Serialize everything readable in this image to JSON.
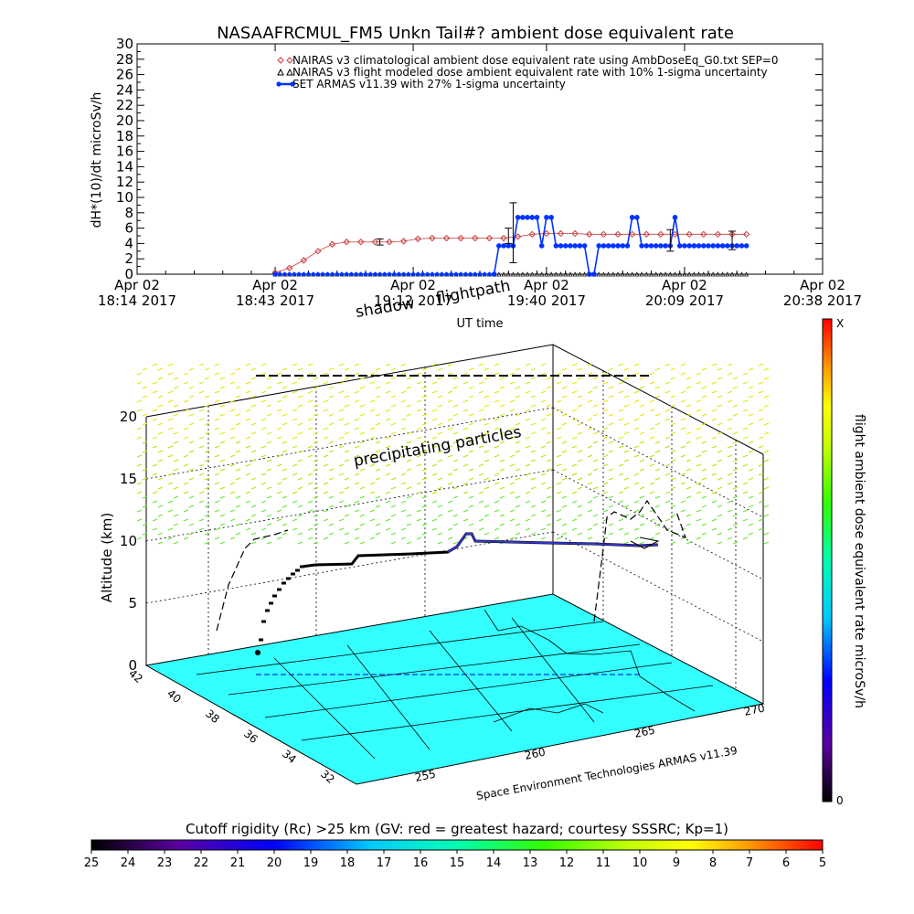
{
  "top_chart": {
    "title": "NASAAFRCMUL_FM5 Unkn Tail#? ambient dose equivalent rate",
    "ylabel": "dH*(10)/dt microSv/h",
    "xlabel": "UT time",
    "legend": [
      "NAIRAS v3 climatological ambient dose equivalent rate using AmbDoseEq_G0.txt SEP=0",
      "NAIRAS v3 flight modeled dose ambient equivalent rate with 10% 1-sigma uncertainty",
      "SET ARMAS v11.39 with 27% 1-sigma uncertainty"
    ],
    "xticks": [
      {
        "date": "Apr 02",
        "time": "18:14 2017"
      },
      {
        "date": "Apr 02",
        "time": "18:43 2017"
      },
      {
        "date": "Apr 02",
        "time": "19:12 2017"
      },
      {
        "date": "Apr 02",
        "time": "19:40 2017"
      },
      {
        "date": "Apr 02",
        "time": "20:09 2017"
      },
      {
        "date": "Apr 02",
        "time": "20:38 2017"
      }
    ]
  },
  "scene": {
    "shadow_label": "shadow",
    "flightpath_label": "flightpath",
    "precip_label": "precipitating particles",
    "alt_label": "Altitude (km)",
    "alt_ticks": [
      "0",
      "5",
      "10",
      "15",
      "20"
    ],
    "lat_ticks": [
      "42",
      "40",
      "38",
      "36",
      "34",
      "32"
    ],
    "lon_ticks": [
      "255",
      "260",
      "265",
      "270"
    ],
    "credit": "Space Environment Technologies ARMAS v11.39"
  },
  "colorbar_right": {
    "label": "flight ambient dose equivalent rate microSv/h",
    "top": "X",
    "bottom": "0"
  },
  "colorbar_bottom": {
    "title": "Cutoff rigidity (Rc) >25 km (GV: red = greatest hazard; courtesy SSSRC; Kp=1)",
    "ticks": [
      "25",
      "24",
      "23",
      "22",
      "21",
      "20",
      "19",
      "18",
      "17",
      "16",
      "15",
      "14",
      "13",
      "12",
      "11",
      "10",
      "9",
      "8",
      "7",
      "6",
      "5"
    ]
  },
  "chart_data": {
    "type": "line",
    "title": "NASAAFRCMUL_FM5 Unkn Tail#? ambient dose equivalent rate",
    "xlabel": "UT time",
    "ylabel": "dH*(10)/dt microSv/h",
    "xlim": [
      "2017-04-02 18:14",
      "2017-04-02 20:38"
    ],
    "ylim": [
      0,
      30
    ],
    "yticks": [
      0,
      2,
      4,
      6,
      8,
      10,
      12,
      14,
      16,
      18,
      20,
      22,
      24,
      26,
      28,
      30
    ],
    "legend_position": "top-right",
    "series": [
      {
        "name": "NAIRAS v3 climatological ambient dose equivalent rate using AmbDoseEq_G0.txt SEP=0",
        "color": "#c83c3c",
        "marker": "diamond",
        "x": [
          "18:43",
          "18:46",
          "18:49",
          "18:52",
          "18:55",
          "18:58",
          "19:01",
          "19:04",
          "19:07",
          "19:10",
          "19:13",
          "19:16",
          "19:19",
          "19:22",
          "19:25",
          "19:28",
          "19:31",
          "19:34",
          "19:37",
          "19:40",
          "19:43",
          "19:46",
          "19:49",
          "19:52",
          "19:55",
          "19:58",
          "20:01",
          "20:04",
          "20:07",
          "20:10",
          "20:13",
          "20:16",
          "20:19",
          "20:22"
        ],
        "values": [
          0.2,
          0.8,
          1.8,
          3.0,
          3.9,
          4.2,
          4.2,
          4.2,
          4.2,
          4.3,
          4.6,
          4.7,
          4.7,
          4.7,
          4.7,
          4.7,
          4.7,
          4.9,
          5.2,
          5.3,
          5.3,
          5.3,
          5.2,
          5.2,
          5.2,
          5.2,
          5.2,
          5.2,
          5.2,
          5.2,
          5.2,
          5.2,
          5.2,
          5.2
        ]
      },
      {
        "name": "NAIRAS v3 flight modeled dose ambient equivalent rate with 10% 1-sigma uncertainty",
        "color": "#000000",
        "marker": "triangle",
        "x": [
          "18:43",
          "20:22"
        ],
        "values": [
          0.0,
          0.0
        ]
      },
      {
        "name": "SET ARMAS v11.39 with 27% 1-sigma uncertainty",
        "color": "#0033ff",
        "marker": "circle",
        "x": [
          "18:43",
          "19:29",
          "19:30",
          "19:31",
          "19:32",
          "19:33",
          "19:34",
          "19:35",
          "19:36",
          "19:37",
          "19:38",
          "19:39",
          "19:40",
          "19:41",
          "19:42",
          "19:43",
          "19:44",
          "19:45",
          "19:46",
          "19:47",
          "19:48",
          "19:49",
          "19:50",
          "19:51",
          "19:52",
          "19:53",
          "19:54",
          "19:55",
          "19:56",
          "19:57",
          "19:58",
          "19:59",
          "20:00",
          "20:01",
          "20:02",
          "20:03",
          "20:04",
          "20:05",
          "20:06",
          "20:07",
          "20:08",
          "20:09",
          "20:10",
          "20:11",
          "20:12",
          "20:13",
          "20:14",
          "20:15",
          "20:16",
          "20:17",
          "20:18",
          "20:19",
          "20:20",
          "20:21",
          "20:22"
        ],
        "values": [
          0,
          0,
          3.7,
          3.7,
          3.7,
          3.7,
          7.4,
          7.4,
          7.4,
          7.4,
          7.4,
          3.7,
          7.4,
          7.4,
          3.7,
          3.7,
          3.7,
          3.7,
          3.7,
          3.7,
          3.7,
          0,
          0,
          3.7,
          3.7,
          3.7,
          3.7,
          3.7,
          3.7,
          3.7,
          7.4,
          7.4,
          3.7,
          3.7,
          3.7,
          3.7,
          3.7,
          3.7,
          3.7,
          7.4,
          3.7,
          3.7,
          3.7,
          3.7,
          3.7,
          3.7,
          3.7,
          3.7,
          3.7,
          3.7,
          3.7,
          3.7,
          3.7,
          3.7,
          3.7
        ]
      }
    ]
  }
}
